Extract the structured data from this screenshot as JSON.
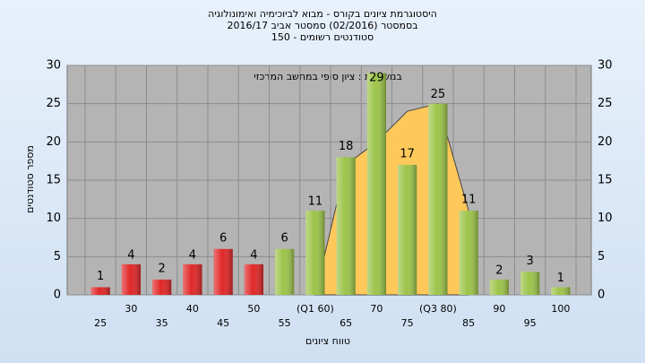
{
  "chart_data": {
    "type": "bar",
    "title": "היסטוגרמת ציונים בקורס - מבוא לביוכימיה ואימונולוגיה",
    "subtitle": [
      "בסמסטר  (02/2016)  סמסטר אביב 2016/17",
      "סטודנטים רשומים - 150"
    ],
    "annotation": "במשבצת : ציון סופי במחשב המרכזי",
    "y_label": "מספר סטודנטים",
    "x_label": "טווח ציונים",
    "categories": [
      "25",
      "30",
      "35",
      "40",
      "45",
      "50",
      "55",
      "(Q1 60)",
      "65",
      "70",
      "75",
      "(Q3 80)",
      "85",
      "90",
      "95",
      "100"
    ],
    "values": [
      1,
      4,
      2,
      4,
      6,
      4,
      6,
      11,
      18,
      29,
      17,
      25,
      11,
      2,
      3,
      1
    ],
    "colors": [
      "#e02828",
      "#e02828",
      "#e02828",
      "#e02828",
      "#e02828",
      "#e02828",
      "#9cc44a",
      "#9cc44a",
      "#9cc44a",
      "#9cc44a",
      "#9cc44a",
      "#9cc44a",
      "#9cc44a",
      "#9cc44a",
      "#9cc44a",
      "#9cc44a"
    ],
    "area": {
      "color": "#ffc85a",
      "values": [
        null,
        null,
        null,
        null,
        null,
        null,
        null,
        0,
        17,
        20,
        24,
        25,
        11,
        null,
        null,
        null
      ]
    },
    "ylim": [
      0,
      30
    ],
    "yticks": [
      0,
      5,
      10,
      15,
      20,
      25,
      30
    ],
    "grid": true
  }
}
